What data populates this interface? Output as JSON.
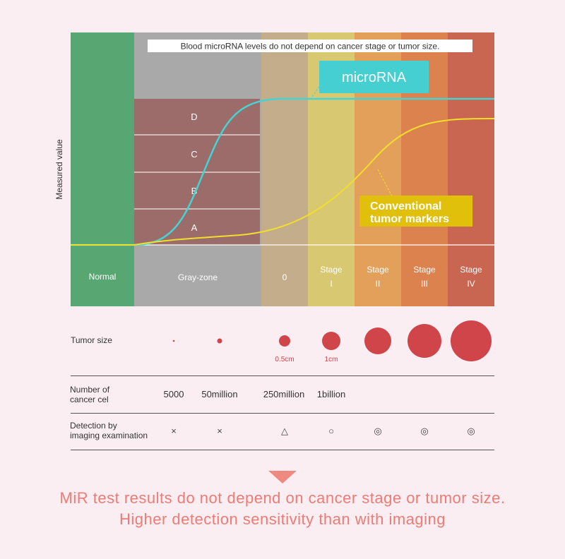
{
  "colors": {
    "normal": "#58a672",
    "grayzone": "#a9a9a9",
    "stage0": "#c3ad8b",
    "stage1": "#d9c872",
    "stage2": "#e3a05b",
    "stage3": "#dc824e",
    "stage4": "#c86651",
    "abcd": "#9c6c6a",
    "microrna": "#45d4d4",
    "marker": "#f1de2c",
    "footer_text": "#ef7b74"
  },
  "chart": {
    "banner": "Blood microRNA levels do not depend on cancer stage or tumor size.",
    "y_axis_label": "Measured value",
    "grades": [
      "D",
      "C",
      "B",
      "A"
    ],
    "microrna_label": "microRNA",
    "marker_label_line1": "Conventional",
    "marker_label_line2": "tumor markers",
    "columns": [
      {
        "line1": "Normal",
        "line2": ""
      },
      {
        "line1": "Gray-zone",
        "line2": ""
      },
      {
        "line1": "0",
        "line2": ""
      },
      {
        "line1": "Stage",
        "line2": "I"
      },
      {
        "line1": "Stage",
        "line2": "II"
      },
      {
        "line1": "Stage",
        "line2": "III"
      },
      {
        "line1": "Stage",
        "line2": "IV"
      }
    ]
  },
  "table": {
    "tumor_size_label": "Tumor size",
    "tumor_size_captions": [
      "0.5cm",
      "1cm"
    ],
    "cells_label_line1": "Number of",
    "cells_label_line2": "cancer cel",
    "cell_counts": [
      "5000",
      "50million",
      "250million",
      "1billion"
    ],
    "detection_label_line1": "Detection by",
    "detection_label_line2": "imaging examination",
    "detection_symbols": [
      "×",
      "×",
      "△",
      "○",
      "◎",
      "◎",
      "◎"
    ]
  },
  "footer": {
    "line1": "MiR test results do not depend on cancer stage or tumor size.",
    "line2": "Higher detection sensitivity than with imaging"
  }
}
